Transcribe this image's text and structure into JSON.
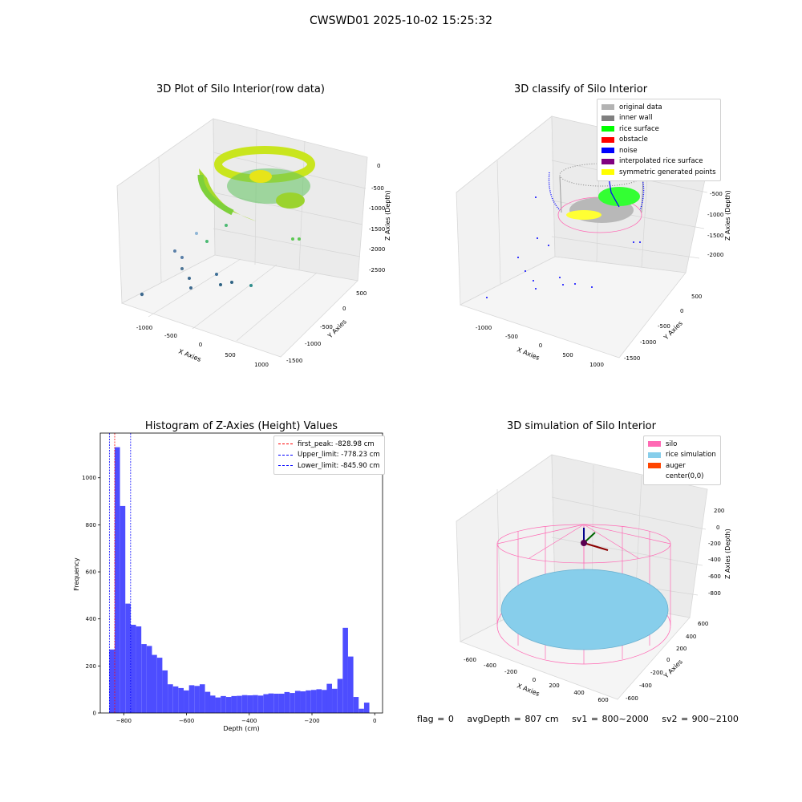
{
  "figure": {
    "suptitle": "CWSWD01 2025-10-02 15:25:32"
  },
  "panels": {
    "raw": {
      "title": "3D Plot of Silo Interior(row data)",
      "xlabel": "X Axies",
      "ylabel": "Y Axies",
      "zlabel": "Z Axies (Depth)",
      "xticks": [
        "-1000",
        "-500",
        "0",
        "500",
        "1000"
      ],
      "yticks": [
        "500",
        "0",
        "-500",
        "-1000",
        "-1500"
      ],
      "zticks": [
        "0",
        "-500",
        "-1000",
        "-1500",
        "-2000",
        "-2500"
      ]
    },
    "classify": {
      "title": "3D classify of Silo Interior",
      "xlabel": "X Axies",
      "ylabel": "Y Axies",
      "zlabel": "Z Axies (Depth)",
      "xticks": [
        "-1000",
        "-500",
        "0",
        "500",
        "1000"
      ],
      "yticks": [
        "500",
        "0",
        "-500",
        "-1000",
        "-1500"
      ],
      "zticks": [
        "0",
        "-500",
        "-1000",
        "-1500",
        "-2000"
      ],
      "legend": [
        {
          "label": "original data",
          "color": "#b3b3b3"
        },
        {
          "label": "inner wall",
          "color": "#808080"
        },
        {
          "label": "rice surface",
          "color": "#00ff00"
        },
        {
          "label": "obstacle",
          "color": "#ff0000"
        },
        {
          "label": "noise",
          "color": "#0000ff"
        },
        {
          "label": "interpolated rice surface",
          "color": "#800080"
        },
        {
          "label": "symmetric generated points",
          "color": "#ffff00"
        }
      ]
    },
    "simulation": {
      "title": "3D simulation of Silo Interior",
      "xlabel": "X Axies",
      "ylabel": "Y Axies",
      "zlabel": "Z Axies (Depth)",
      "xticks": [
        "-600",
        "-400",
        "-200",
        "0",
        "200",
        "400",
        "600"
      ],
      "yticks": [
        "600",
        "400",
        "200",
        "0",
        "-200",
        "-400",
        "-600"
      ],
      "zticks": [
        "200",
        "0",
        "-200",
        "-400",
        "-600",
        "-800"
      ],
      "legend": [
        {
          "label": "silo",
          "color": "#ff69b4"
        },
        {
          "label": "rice simulation",
          "color": "#87ceeb"
        },
        {
          "label": "auger",
          "color": "#ff4500"
        },
        {
          "label": "center(0,0)",
          "color": "#ffffff"
        }
      ],
      "status": {
        "flag": "flag = 0",
        "avg_depth": "avgDepth = 807 cm",
        "sv1": "sv1 = 800~2000",
        "sv2": "sv2 = 900~2100"
      }
    }
  },
  "chart_data": [
    {
      "type": "histogram",
      "title": "Histogram of Z-Axies (Height) Values",
      "xlabel": "Depth (cm)",
      "ylabel": "Frequency",
      "xlim": [
        -875,
        25
      ],
      "ylim": [
        0,
        1190
      ],
      "xticks": [
        -800,
        -600,
        -400,
        -200,
        0
      ],
      "yticks": [
        0,
        200,
        400,
        600,
        800,
        1000
      ],
      "bin_width": 16.9,
      "bar_color": "#4d4dff",
      "bins_start": [
        -846,
        -829,
        -812,
        -795,
        -778,
        -761,
        -744,
        -727,
        -711,
        -694,
        -677,
        -660,
        -643,
        -626,
        -609,
        -592,
        -575,
        -558,
        -541,
        -525,
        -508,
        -491,
        -474,
        -457,
        -440,
        -423,
        -406,
        -389,
        -372,
        -355,
        -339,
        -322,
        -305,
        -288,
        -271,
        -254,
        -237,
        -220,
        -203,
        -186,
        -169,
        -153,
        -136,
        -119,
        -102,
        -85,
        -68,
        -51,
        -34,
        -17
      ],
      "values": [
        270,
        1130,
        880,
        465,
        375,
        368,
        293,
        285,
        247,
        235,
        181,
        122,
        113,
        106,
        96,
        118,
        115,
        122,
        90,
        74,
        66,
        72,
        68,
        72,
        73,
        76,
        75,
        76,
        74,
        80,
        83,
        82,
        82,
        89,
        85,
        94,
        92,
        96,
        98,
        101,
        98,
        124,
        103,
        145,
        362,
        240,
        68,
        18,
        44,
        0
      ],
      "vlines": [
        {
          "label": "first_peak: -828.98 cm",
          "x": -828.98,
          "color": "#ff0000"
        },
        {
          "label": "Upper_limit: -778.23 cm",
          "x": -778.23,
          "color": "#0000ff"
        },
        {
          "label": "Lower_limit: -845.90 cm",
          "x": -845.9,
          "color": "#0000ff"
        }
      ]
    }
  ]
}
